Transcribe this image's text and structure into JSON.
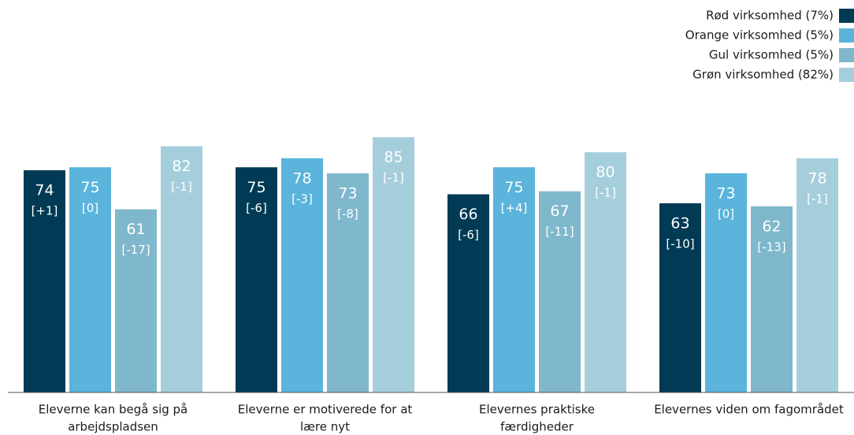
{
  "chart_data": {
    "type": "bar",
    "categories": [
      [
        "Eleverne kan begå sig på",
        "arbejdspladsen"
      ],
      [
        "Eleverne er motiverede for at",
        "lære nyt"
      ],
      [
        "Elevernes praktiske",
        "færdigheder"
      ],
      [
        "Elevernes viden om fagområdet"
      ]
    ],
    "series": [
      {
        "name": "Rød virksomhed (7%)",
        "color": "#003a55",
        "values": [
          74,
          75,
          66,
          63
        ],
        "change_labels": [
          "[+1]",
          "[-6]",
          "[-6]",
          "[-10]"
        ]
      },
      {
        "name": "Orange virksomhed (5%)",
        "color": "#5ab4db",
        "values": [
          75,
          78,
          75,
          73
        ],
        "change_labels": [
          "[0]",
          "[-3]",
          "[+4]",
          "[0]"
        ]
      },
      {
        "name": "Gul virksomhed (5%)",
        "color": "#7fb8cc",
        "values": [
          61,
          73,
          67,
          62
        ],
        "change_labels": [
          "[-17]",
          "[-8]",
          "[-11]",
          "[-13]"
        ]
      },
      {
        "name": "Grøn virksomhed (82%)",
        "color": "#a5cedc",
        "values": [
          82,
          85,
          80,
          78
        ],
        "change_labels": [
          "[-1]",
          "[-1]",
          "[-1]",
          "[-1]"
        ]
      }
    ],
    "ylim": [
      0,
      100
    ],
    "legend": "top-right"
  }
}
